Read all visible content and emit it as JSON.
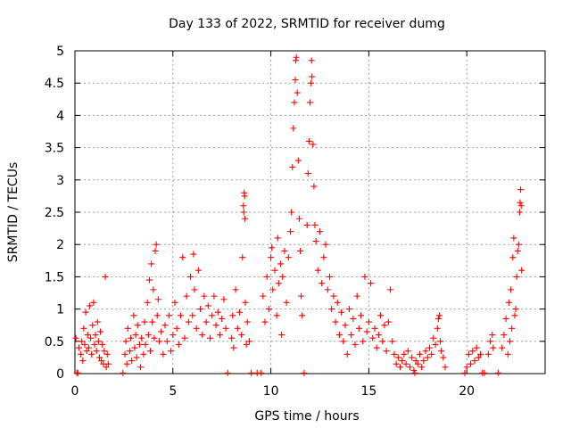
{
  "chart_data": {
    "type": "scatter",
    "title": "Day 133 of 2022, SRMTID for receiver dumg",
    "xlabel": "GPS time / hours",
    "ylabel": "SRMTID / TECUs",
    "xlim": [
      0,
      24
    ],
    "ylim": [
      0,
      5
    ],
    "x_ticks": [
      0,
      5,
      10,
      15,
      20
    ],
    "x_tick_labels": [
      "0",
      "5",
      "10",
      "15",
      "20"
    ],
    "y_ticks": [
      0,
      0.5,
      1,
      1.5,
      2,
      2.5,
      3,
      3.5,
      4,
      4.5,
      5
    ],
    "y_tick_labels": [
      "0",
      "0.5",
      "1",
      "1.5",
      "2",
      "2.5",
      "3",
      "3.5",
      "4",
      "4.5",
      "5"
    ],
    "grid": true,
    "marker": "+",
    "series_color": "#ff0000",
    "series": [
      {
        "name": "SRMTID",
        "points": [
          [
            0.05,
            0.55
          ],
          [
            0.1,
            0.01
          ],
          [
            0.15,
            0.01
          ],
          [
            0.2,
            0.4
          ],
          [
            0.3,
            0.3
          ],
          [
            0.35,
            0.5
          ],
          [
            0.4,
            0.2
          ],
          [
            0.45,
            0.7
          ],
          [
            0.5,
            0.45
          ],
          [
            0.55,
            0.95
          ],
          [
            0.6,
            0.35
          ],
          [
            0.65,
            0.6
          ],
          [
            0.7,
            0.4
          ],
          [
            0.75,
            1.05
          ],
          [
            0.8,
            0.55
          ],
          [
            0.85,
            0.3
          ],
          [
            0.9,
            0.75
          ],
          [
            0.95,
            1.1
          ],
          [
            1.0,
            0.45
          ],
          [
            1.05,
            0.6
          ],
          [
            1.1,
            0.35
          ],
          [
            1.15,
            0.8
          ],
          [
            1.2,
            0.5
          ],
          [
            1.25,
            0.25
          ],
          [
            1.3,
            0.65
          ],
          [
            1.35,
            0.2
          ],
          [
            1.4,
            0.45
          ],
          [
            1.45,
            0.15
          ],
          [
            1.5,
            0.35
          ],
          [
            1.55,
            1.5
          ],
          [
            1.6,
            0.1
          ],
          [
            1.65,
            0.3
          ],
          [
            1.7,
            0.15
          ],
          [
            2.45,
            0.01
          ],
          [
            2.55,
            0.3
          ],
          [
            2.6,
            0.5
          ],
          [
            2.65,
            0.15
          ],
          [
            2.7,
            0.7
          ],
          [
            2.8,
            0.35
          ],
          [
            2.85,
            0.55
          ],
          [
            2.9,
            0.2
          ],
          [
            3.0,
            0.9
          ],
          [
            3.05,
            0.4
          ],
          [
            3.1,
            0.6
          ],
          [
            3.15,
            0.25
          ],
          [
            3.2,
            0.75
          ],
          [
            3.3,
            0.45
          ],
          [
            3.35,
            0.1
          ],
          [
            3.4,
            0.55
          ],
          [
            3.5,
            0.3
          ],
          [
            3.55,
            0.8
          ],
          [
            3.6,
            0.45
          ],
          [
            3.7,
            1.1
          ],
          [
            3.75,
            0.6
          ],
          [
            3.8,
            1.45
          ],
          [
            3.85,
            0.35
          ],
          [
            3.9,
            1.7
          ],
          [
            3.95,
            0.8
          ],
          [
            4.0,
            1.3
          ],
          [
            4.05,
            0.55
          ],
          [
            4.1,
            1.9
          ],
          [
            4.15,
            2.0
          ],
          [
            4.2,
            0.9
          ],
          [
            4.25,
            1.15
          ],
          [
            4.3,
            0.5
          ],
          [
            4.4,
            0.65
          ],
          [
            4.5,
            0.3
          ],
          [
            4.6,
            0.75
          ],
          [
            4.7,
            0.5
          ],
          [
            4.8,
            0.9
          ],
          [
            4.9,
            0.35
          ],
          [
            5.0,
            0.6
          ],
          [
            5.1,
            1.1
          ],
          [
            5.2,
            0.7
          ],
          [
            5.3,
            0.45
          ],
          [
            5.4,
            0.9
          ],
          [
            5.5,
            1.8
          ],
          [
            5.6,
            0.55
          ],
          [
            5.7,
            1.2
          ],
          [
            5.8,
            0.8
          ],
          [
            5.9,
            1.5
          ],
          [
            6.0,
            0.9
          ],
          [
            6.05,
            1.85
          ],
          [
            6.1,
            1.3
          ],
          [
            6.2,
            0.7
          ],
          [
            6.3,
            1.6
          ],
          [
            6.4,
            1.0
          ],
          [
            6.5,
            0.6
          ],
          [
            6.6,
            1.2
          ],
          [
            6.7,
            0.8
          ],
          [
            6.8,
            1.05
          ],
          [
            6.9,
            0.55
          ],
          [
            7.0,
            0.9
          ],
          [
            7.1,
            1.2
          ],
          [
            7.2,
            0.75
          ],
          [
            7.3,
            0.95
          ],
          [
            7.4,
            0.6
          ],
          [
            7.5,
            0.85
          ],
          [
            7.6,
            1.15
          ],
          [
            7.7,
            0.7
          ],
          [
            7.8,
            0.01
          ],
          [
            8.0,
            0.55
          ],
          [
            8.05,
            0.9
          ],
          [
            8.1,
            0.4
          ],
          [
            8.2,
            1.3
          ],
          [
            8.3,
            0.7
          ],
          [
            8.4,
            0.95
          ],
          [
            8.5,
            0.6
          ],
          [
            8.55,
            1.8
          ],
          [
            8.6,
            2.6
          ],
          [
            8.62,
            2.5
          ],
          [
            8.64,
            2.8
          ],
          [
            8.66,
            2.75
          ],
          [
            8.68,
            2.4
          ],
          [
            8.7,
            1.1
          ],
          [
            8.75,
            0.45
          ],
          [
            8.8,
            0.8
          ],
          [
            8.9,
            0.5
          ],
          [
            9.0,
            0.01
          ],
          [
            9.3,
            0.01
          ],
          [
            9.5,
            0.01
          ],
          [
            9.6,
            1.2
          ],
          [
            9.7,
            0.8
          ],
          [
            9.8,
            1.5
          ],
          [
            9.9,
            1.0
          ],
          [
            10.0,
            1.8
          ],
          [
            10.05,
            1.95
          ],
          [
            10.1,
            1.3
          ],
          [
            10.2,
            1.6
          ],
          [
            10.3,
            0.9
          ],
          [
            10.35,
            2.1
          ],
          [
            10.4,
            1.4
          ],
          [
            10.5,
            1.7
          ],
          [
            10.55,
            0.6
          ],
          [
            10.6,
            1.5
          ],
          [
            10.7,
            1.9
          ],
          [
            10.8,
            1.1
          ],
          [
            10.9,
            1.8
          ],
          [
            11.0,
            2.2
          ],
          [
            11.05,
            2.5
          ],
          [
            11.1,
            3.2
          ],
          [
            11.15,
            3.8
          ],
          [
            11.2,
            4.2
          ],
          [
            11.25,
            4.55
          ],
          [
            11.27,
            4.85
          ],
          [
            11.3,
            4.9
          ],
          [
            11.35,
            4.35
          ],
          [
            11.4,
            3.3
          ],
          [
            11.45,
            2.4
          ],
          [
            11.5,
            1.9
          ],
          [
            11.55,
            1.2
          ],
          [
            11.6,
            0.9
          ],
          [
            11.7,
            0.01
          ],
          [
            11.85,
            2.3
          ],
          [
            11.9,
            3.1
          ],
          [
            11.95,
            3.6
          ],
          [
            12.0,
            4.2
          ],
          [
            12.05,
            4.5
          ],
          [
            12.08,
            4.85
          ],
          [
            12.1,
            4.6
          ],
          [
            12.15,
            3.55
          ],
          [
            12.2,
            2.9
          ],
          [
            12.25,
            2.3
          ],
          [
            12.3,
            2.05
          ],
          [
            12.4,
            1.6
          ],
          [
            12.5,
            2.2
          ],
          [
            12.6,
            1.4
          ],
          [
            12.7,
            1.8
          ],
          [
            12.8,
            2.0
          ],
          [
            12.9,
            1.3
          ],
          [
            13.0,
            1.5
          ],
          [
            13.1,
            1.0
          ],
          [
            13.2,
            1.2
          ],
          [
            13.3,
            0.8
          ],
          [
            13.4,
            1.1
          ],
          [
            13.5,
            0.6
          ],
          [
            13.6,
            0.95
          ],
          [
            13.7,
            0.5
          ],
          [
            13.8,
            0.75
          ],
          [
            13.9,
            0.3
          ],
          [
            14.0,
            1.0
          ],
          [
            14.1,
            0.6
          ],
          [
            14.2,
            0.85
          ],
          [
            14.3,
            0.45
          ],
          [
            14.4,
            1.2
          ],
          [
            14.5,
            0.7
          ],
          [
            14.6,
            0.9
          ],
          [
            14.7,
            0.5
          ],
          [
            14.8,
            1.5
          ],
          [
            14.9,
            0.65
          ],
          [
            15.0,
            0.8
          ],
          [
            15.1,
            1.4
          ],
          [
            15.2,
            0.55
          ],
          [
            15.3,
            0.7
          ],
          [
            15.4,
            0.4
          ],
          [
            15.5,
            0.6
          ],
          [
            15.6,
            0.9
          ],
          [
            15.7,
            0.5
          ],
          [
            15.8,
            0.75
          ],
          [
            15.9,
            0.35
          ],
          [
            16.0,
            0.8
          ],
          [
            16.1,
            1.3
          ],
          [
            16.2,
            0.5
          ],
          [
            16.3,
            0.3
          ],
          [
            16.4,
            0.15
          ],
          [
            16.5,
            0.25
          ],
          [
            16.6,
            0.1
          ],
          [
            16.7,
            0.2
          ],
          [
            16.8,
            0.3
          ],
          [
            16.9,
            0.15
          ],
          [
            17.0,
            0.35
          ],
          [
            17.1,
            0.1
          ],
          [
            17.2,
            0.25
          ],
          [
            17.3,
            0.05
          ],
          [
            17.35,
            0.01
          ],
          [
            17.4,
            0.2
          ],
          [
            17.5,
            0.15
          ],
          [
            17.6,
            0.3
          ],
          [
            17.7,
            0.1
          ],
          [
            17.8,
            0.2
          ],
          [
            17.9,
            0.35
          ],
          [
            18.0,
            0.25
          ],
          [
            18.1,
            0.4
          ],
          [
            18.2,
            0.3
          ],
          [
            18.3,
            0.55
          ],
          [
            18.4,
            0.45
          ],
          [
            18.5,
            0.7
          ],
          [
            18.55,
            0.85
          ],
          [
            18.6,
            0.9
          ],
          [
            18.65,
            0.5
          ],
          [
            18.7,
            0.35
          ],
          [
            18.8,
            0.25
          ],
          [
            18.9,
            0.1
          ],
          [
            19.9,
            0.01
          ],
          [
            20.0,
            0.1
          ],
          [
            20.1,
            0.3
          ],
          [
            20.2,
            0.15
          ],
          [
            20.3,
            0.35
          ],
          [
            20.4,
            0.2
          ],
          [
            20.5,
            0.4
          ],
          [
            20.6,
            0.25
          ],
          [
            20.7,
            0.3
          ],
          [
            20.8,
            0.01
          ],
          [
            20.9,
            0.01
          ],
          [
            21.1,
            0.3
          ],
          [
            21.2,
            0.5
          ],
          [
            21.3,
            0.6
          ],
          [
            21.35,
            0.4
          ],
          [
            21.6,
            0.01
          ],
          [
            21.8,
            0.4
          ],
          [
            21.9,
            0.6
          ],
          [
            22.0,
            0.85
          ],
          [
            22.1,
            0.3
          ],
          [
            22.15,
            1.1
          ],
          [
            22.2,
            0.5
          ],
          [
            22.25,
            1.3
          ],
          [
            22.3,
            0.7
          ],
          [
            22.35,
            1.8
          ],
          [
            22.4,
            2.1
          ],
          [
            22.45,
            0.9
          ],
          [
            22.5,
            1.0
          ],
          [
            22.55,
            1.5
          ],
          [
            22.6,
            1.9
          ],
          [
            22.65,
            2.0
          ],
          [
            22.7,
            2.5
          ],
          [
            22.72,
            2.65
          ],
          [
            22.75,
            2.85
          ],
          [
            22.78,
            2.6
          ],
          [
            22.8,
            1.6
          ]
        ]
      }
    ]
  }
}
